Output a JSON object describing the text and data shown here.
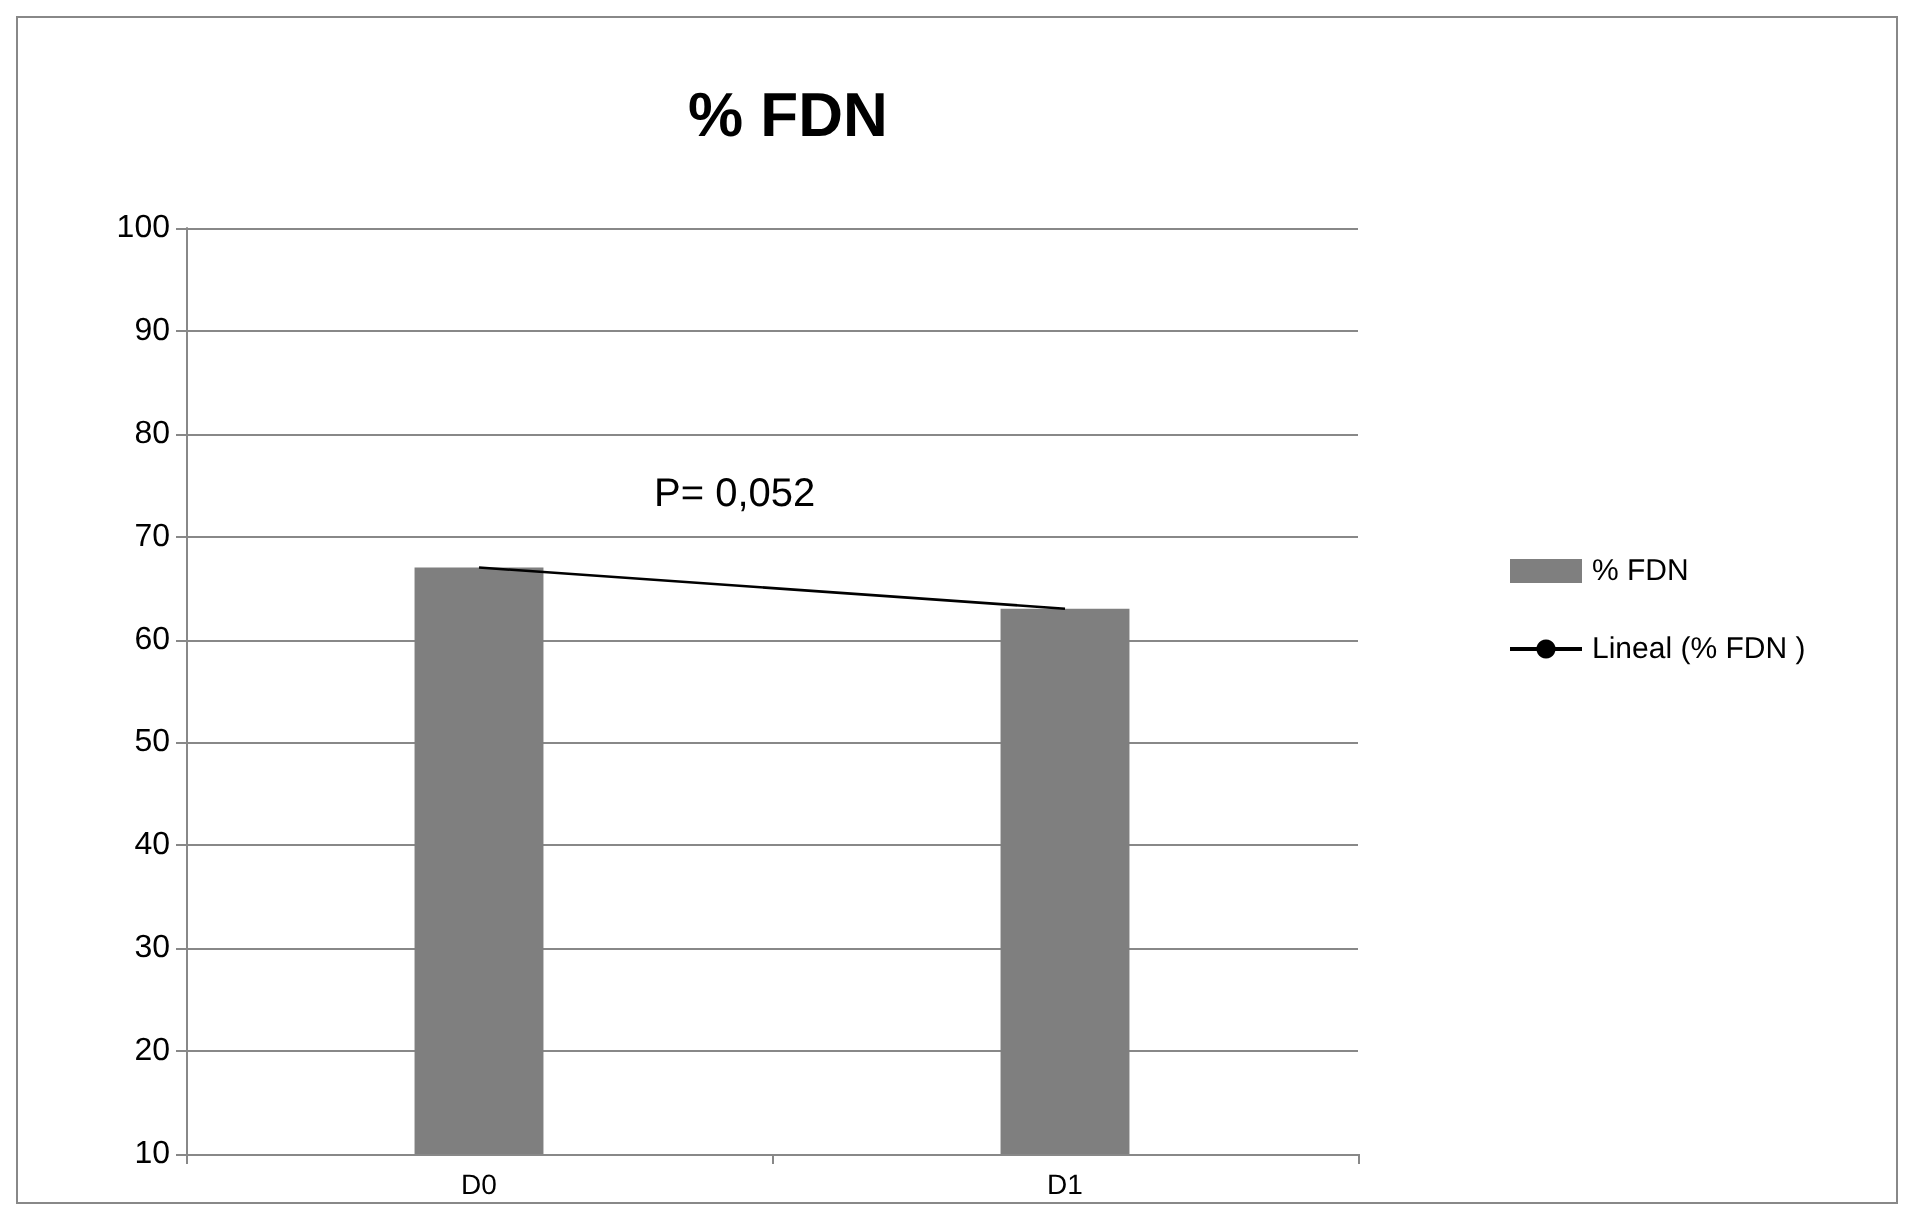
{
  "chart_data": {
    "type": "bar",
    "title": "% FDN",
    "categories": [
      "D0",
      "D1"
    ],
    "series": [
      {
        "name": "% FDN",
        "color": "#7f7f7f",
        "values": [
          67,
          63
        ]
      },
      {
        "name": "Lineal (% FDN )",
        "type": "line",
        "color": "#000000",
        "values": [
          67,
          63
        ],
        "marker": "none"
      }
    ],
    "ylim": [
      10,
      100
    ],
    "yticks": [
      10,
      20,
      30,
      40,
      50,
      60,
      70,
      80,
      90,
      100
    ],
    "grid": "y",
    "legend": "right",
    "annotations": [
      "P= 0,052"
    ]
  }
}
